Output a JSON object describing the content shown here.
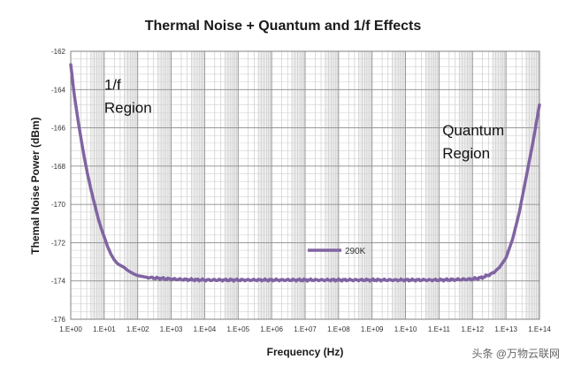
{
  "chart_data": {
    "type": "line",
    "title": "Thermal Noise + Quantum and 1/f Effects",
    "xlabel": "Frequency (Hz)",
    "ylabel": "Themal Noise Power (dBm)",
    "x_scale": "log10",
    "xlim_exponent": [
      0,
      14
    ],
    "ylim": [
      -176,
      -162
    ],
    "y_ticks": [
      "-162",
      "-164",
      "-166",
      "-168",
      "-170",
      "-172",
      "-174",
      "-176"
    ],
    "x_tick_labels": [
      "1.E+00",
      "1.E+01",
      "1.E+02",
      "1.E+03",
      "1.E+04",
      "1.E+05",
      "1.E+06",
      "1.E+07",
      "1.E+08",
      "1.E+09",
      "1.E+10",
      "1.E+11",
      "1.E+12",
      "1.E+13",
      "1.E+14"
    ],
    "grid": true,
    "series": [
      {
        "name": "290K",
        "color": "#8064a2",
        "x_exponent": [
          0,
          0.1,
          0.2,
          0.3,
          0.4,
          0.5,
          0.6,
          0.7,
          0.8,
          0.9,
          1.0,
          1.1,
          1.2,
          1.3,
          1.4,
          1.5,
          1.6,
          1.7,
          1.8,
          1.9,
          2.0,
          2.25,
          2.5,
          3.0,
          3.5,
          4.0,
          5.0,
          6.0,
          7.0,
          8.0,
          9.0,
          10.0,
          11.0,
          11.5,
          12.0,
          12.3,
          12.6,
          12.8,
          13.0,
          13.2,
          13.4,
          13.6,
          13.8,
          14.0
        ],
        "values": [
          -162.7,
          -164.2,
          -165.4,
          -166.5,
          -167.5,
          -168.4,
          -169.2,
          -169.9,
          -170.6,
          -171.2,
          -171.7,
          -172.2,
          -172.6,
          -172.9,
          -173.1,
          -173.2,
          -173.3,
          -173.45,
          -173.55,
          -173.65,
          -173.72,
          -173.8,
          -173.85,
          -173.9,
          -173.93,
          -173.95,
          -173.95,
          -173.95,
          -173.95,
          -173.95,
          -173.95,
          -173.95,
          -173.95,
          -173.93,
          -173.9,
          -173.82,
          -173.6,
          -173.3,
          -172.8,
          -171.8,
          -170.4,
          -168.6,
          -166.8,
          -164.8
        ]
      }
    ],
    "annotations": [
      {
        "id": "one-over-f",
        "lines": [
          "1/f",
          "Region"
        ],
        "at_x_exponent": 1.0,
        "at_y": [
          -164.0,
          -165.2
        ]
      },
      {
        "id": "quantum",
        "lines": [
          "Quantum",
          "Region"
        ],
        "at_x_exponent": 11.1,
        "at_y": [
          -166.4,
          -167.6
        ]
      }
    ],
    "legend": {
      "position": "inside-lower-center",
      "entries": [
        "290K"
      ]
    }
  },
  "watermark": "头条 @万物云联网"
}
